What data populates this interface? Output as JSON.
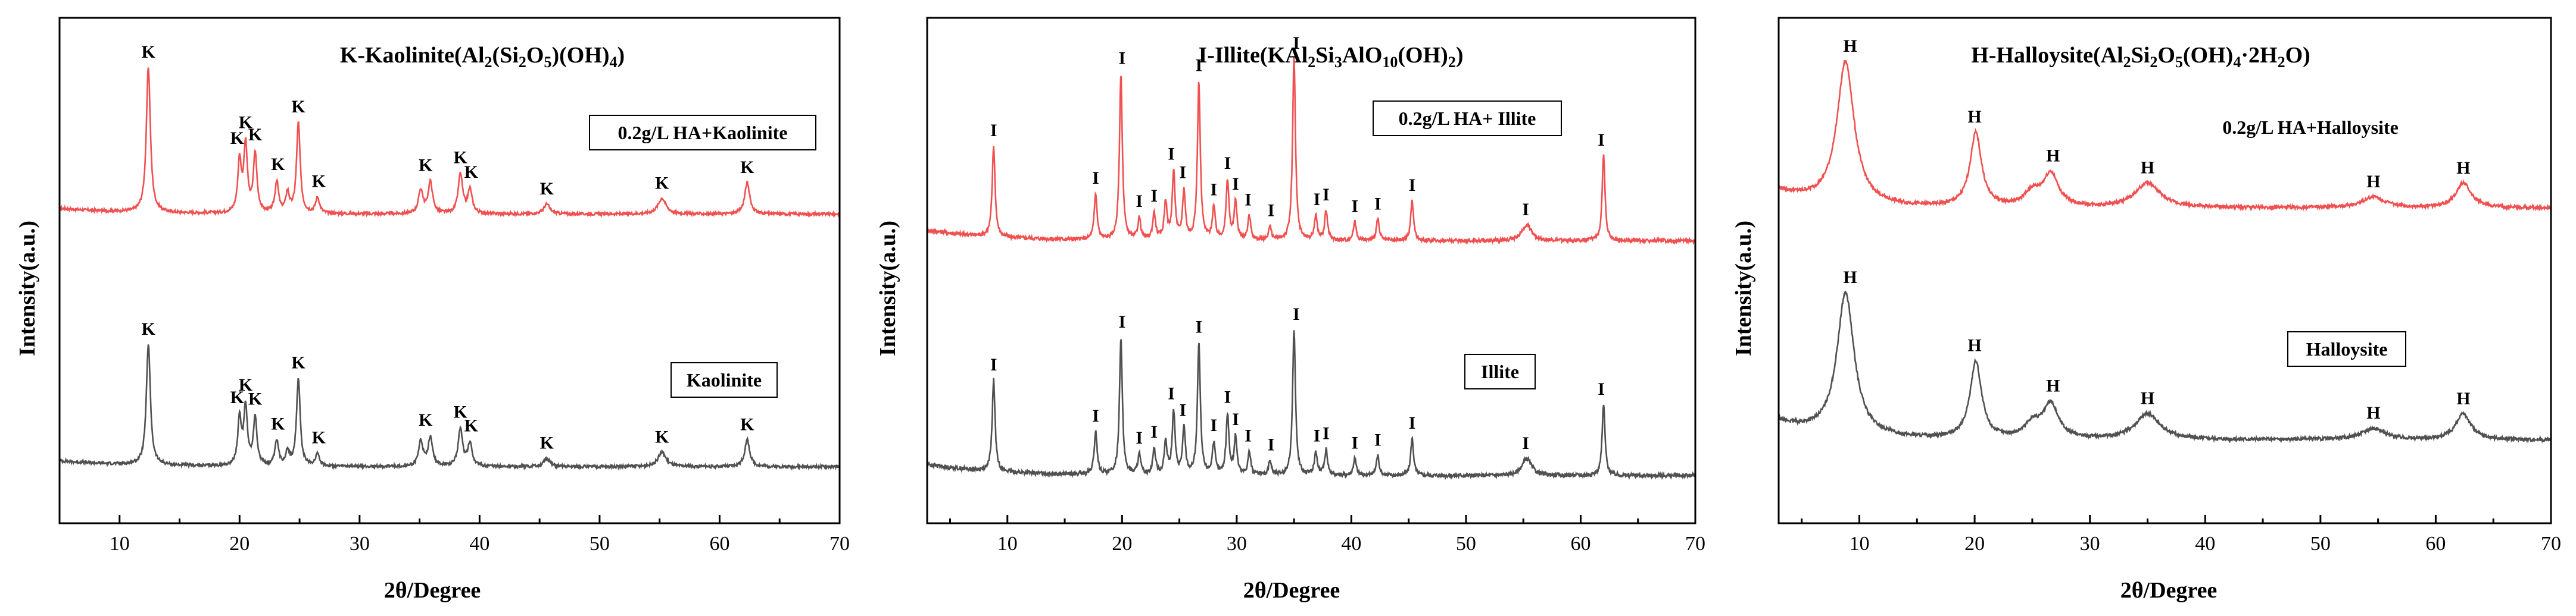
{
  "colors": {
    "top_series": "#f05050",
    "bottom_series": "#505050"
  },
  "chart_data": [
    {
      "type": "line",
      "title": "K-Kaolinite(Al2(Si2O5)(OH)4)",
      "title_parts": [
        "K-Kaolinite(Al",
        "2",
        "(Si",
        "2",
        "O",
        "5",
        ")(OH)",
        "4",
        ")"
      ],
      "xlabel": "2θ/Degree",
      "ylabel": "Intensity(a.u.)",
      "xlim": [
        5,
        70
      ],
      "xticks": [
        10,
        20,
        30,
        40,
        50,
        60,
        70
      ],
      "series": [
        {
          "name": "0.2g/L HA+Kaolinite",
          "color": "#f05050",
          "baseline": 0.3,
          "peaks": [
            [
              12.4,
              0.74,
              0.2
            ],
            [
              20.0,
              0.26,
              0.18
            ],
            [
              20.5,
              0.34,
              0.18
            ],
            [
              21.3,
              0.3,
              0.18
            ],
            [
              23.1,
              0.16,
              0.18
            ],
            [
              24.0,
              0.1,
              0.18
            ],
            [
              24.9,
              0.46,
              0.18
            ],
            [
              26.5,
              0.08,
              0.2
            ],
            [
              35.1,
              0.12,
              0.22
            ],
            [
              35.9,
              0.16,
              0.22
            ],
            [
              38.4,
              0.2,
              0.22
            ],
            [
              39.2,
              0.12,
              0.22
            ],
            [
              45.6,
              0.05,
              0.3
            ],
            [
              55.2,
              0.08,
              0.4
            ],
            [
              62.3,
              0.16,
              0.25
            ]
          ],
          "peak_labels": [
            [
              12.4,
              "K"
            ],
            [
              19.8,
              "K"
            ],
            [
              20.5,
              "K"
            ],
            [
              21.3,
              "K"
            ],
            [
              23.2,
              "K"
            ],
            [
              24.9,
              "K"
            ],
            [
              26.6,
              "K"
            ],
            [
              35.5,
              "K"
            ],
            [
              38.4,
              "K"
            ],
            [
              39.3,
              "K"
            ],
            [
              45.6,
              "K"
            ],
            [
              55.2,
              "K"
            ],
            [
              62.3,
              "K"
            ]
          ]
        },
        {
          "name": "Kaolinite",
          "color": "#505050",
          "baseline": 0.0,
          "peaks": [
            [
              12.4,
              0.58,
              0.2
            ],
            [
              20.0,
              0.22,
              0.18
            ],
            [
              20.5,
              0.28,
              0.18
            ],
            [
              21.3,
              0.23,
              0.18
            ],
            [
              23.1,
              0.12,
              0.18
            ],
            [
              24.0,
              0.07,
              0.18
            ],
            [
              24.9,
              0.42,
              0.18
            ],
            [
              26.5,
              0.06,
              0.2
            ],
            [
              35.1,
              0.12,
              0.22
            ],
            [
              35.9,
              0.14,
              0.22
            ],
            [
              38.4,
              0.18,
              0.22
            ],
            [
              39.2,
              0.11,
              0.22
            ],
            [
              45.6,
              0.04,
              0.3
            ],
            [
              55.2,
              0.07,
              0.4
            ],
            [
              62.3,
              0.13,
              0.25
            ]
          ],
          "peak_labels": [
            [
              12.4,
              "K"
            ],
            [
              19.8,
              "K"
            ],
            [
              20.5,
              "K"
            ],
            [
              21.3,
              "K"
            ],
            [
              23.2,
              "K"
            ],
            [
              24.9,
              "K"
            ],
            [
              26.6,
              "K"
            ],
            [
              35.5,
              "K"
            ],
            [
              38.4,
              "K"
            ],
            [
              39.3,
              "K"
            ],
            [
              45.6,
              "K"
            ],
            [
              55.2,
              "K"
            ],
            [
              62.3,
              "K"
            ]
          ]
        }
      ]
    },
    {
      "type": "line",
      "title": "I-Illite(KAl2Si3AlO10(OH)2)",
      "title_parts": [
        "I-Illite(KAl",
        "2",
        "Si",
        "3",
        "AlO",
        "10",
        "(OH)",
        "2",
        ")"
      ],
      "xlabel": "2θ/Degree",
      "ylabel": "Intensity(a.u.)",
      "xlim": [
        3,
        70
      ],
      "xticks": [
        10,
        20,
        30,
        40,
        50,
        60,
        70
      ],
      "series": [
        {
          "name": "0.2g/L HA+ Illite",
          "color": "#f05050",
          "baseline": 0.28,
          "peaks": [
            [
              8.8,
              0.34,
              0.15
            ],
            [
              17.7,
              0.17,
              0.15
            ],
            [
              19.9,
              0.62,
              0.15
            ],
            [
              21.5,
              0.08,
              0.15
            ],
            [
              22.8,
              0.1,
              0.15
            ],
            [
              23.8,
              0.14,
              0.15
            ],
            [
              24.5,
              0.25,
              0.15
            ],
            [
              25.4,
              0.18,
              0.15
            ],
            [
              26.7,
              0.59,
              0.15
            ],
            [
              28.0,
              0.12,
              0.15
            ],
            [
              29.2,
              0.22,
              0.15
            ],
            [
              29.9,
              0.14,
              0.15
            ],
            [
              31.1,
              0.09,
              0.15
            ],
            [
              32.9,
              0.05,
              0.15
            ],
            [
              35.0,
              0.68,
              0.15
            ],
            [
              36.9,
              0.09,
              0.15
            ],
            [
              37.8,
              0.11,
              0.15
            ],
            [
              40.3,
              0.07,
              0.15
            ],
            [
              42.3,
              0.08,
              0.15
            ],
            [
              45.3,
              0.15,
              0.15
            ],
            [
              55.3,
              0.06,
              0.5
            ],
            [
              62.0,
              0.32,
              0.15
            ]
          ],
          "peak_labels": [
            [
              8.8,
              "I"
            ],
            [
              17.7,
              "I"
            ],
            [
              20.0,
              "I"
            ],
            [
              21.5,
              "I"
            ],
            [
              22.8,
              "I"
            ],
            [
              24.3,
              "I"
            ],
            [
              25.3,
              "I"
            ],
            [
              26.7,
              "I"
            ],
            [
              28.0,
              "I"
            ],
            [
              29.2,
              "I"
            ],
            [
              29.9,
              "I"
            ],
            [
              31.0,
              "I"
            ],
            [
              33.0,
              "I"
            ],
            [
              35.2,
              "I"
            ],
            [
              37.0,
              "I"
            ],
            [
              37.8,
              "I"
            ],
            [
              40.3,
              "I"
            ],
            [
              42.3,
              "I"
            ],
            [
              45.3,
              "I"
            ],
            [
              55.2,
              "I"
            ],
            [
              61.8,
              "I"
            ]
          ]
        },
        {
          "name": "Illite",
          "color": "#505050",
          "baseline": 0.0,
          "peaks": [
            [
              8.8,
              0.32,
              0.15
            ],
            [
              17.7,
              0.15,
              0.15
            ],
            [
              19.9,
              0.48,
              0.15
            ],
            [
              21.5,
              0.07,
              0.15
            ],
            [
              22.8,
              0.09,
              0.15
            ],
            [
              23.8,
              0.11,
              0.15
            ],
            [
              24.5,
              0.22,
              0.15
            ],
            [
              25.4,
              0.16,
              0.15
            ],
            [
              26.7,
              0.46,
              0.15
            ],
            [
              28.0,
              0.11,
              0.15
            ],
            [
              29.2,
              0.21,
              0.15
            ],
            [
              29.9,
              0.13,
              0.15
            ],
            [
              31.1,
              0.08,
              0.15
            ],
            [
              32.9,
              0.05,
              0.15
            ],
            [
              35.0,
              0.51,
              0.15
            ],
            [
              36.9,
              0.08,
              0.15
            ],
            [
              37.8,
              0.09,
              0.15
            ],
            [
              40.3,
              0.06,
              0.15
            ],
            [
              42.3,
              0.07,
              0.15
            ],
            [
              45.3,
              0.13,
              0.15
            ],
            [
              55.3,
              0.06,
              0.5
            ],
            [
              62.0,
              0.25,
              0.15
            ]
          ],
          "peak_labels": [
            [
              8.8,
              "I"
            ],
            [
              17.7,
              "I"
            ],
            [
              20.0,
              "I"
            ],
            [
              21.5,
              "I"
            ],
            [
              22.8,
              "I"
            ],
            [
              24.3,
              "I"
            ],
            [
              25.3,
              "I"
            ],
            [
              26.7,
              "I"
            ],
            [
              28.0,
              "I"
            ],
            [
              29.2,
              "I"
            ],
            [
              29.9,
              "I"
            ],
            [
              31.0,
              "I"
            ],
            [
              33.0,
              "I"
            ],
            [
              35.2,
              "I"
            ],
            [
              37.0,
              "I"
            ],
            [
              37.8,
              "I"
            ],
            [
              40.3,
              "I"
            ],
            [
              42.3,
              "I"
            ],
            [
              45.3,
              "I"
            ],
            [
              55.2,
              "I"
            ],
            [
              61.8,
              "I"
            ]
          ]
        }
      ]
    },
    {
      "type": "line",
      "title": "H-Halloysite(Al2Si2O5(OH)4·2H2O)",
      "title_parts": [
        "H-Halloysite(Al",
        "2",
        "Si",
        "2",
        "O",
        "5",
        "(OH)",
        "4",
        "·2H",
        "2",
        "O)"
      ],
      "xlabel": "2θ/Degree",
      "ylabel": "Intensity(a.u.)",
      "xlim": [
        3,
        70
      ],
      "xticks": [
        10,
        20,
        30,
        40,
        50,
        60,
        70
      ],
      "series": [
        {
          "name": "0.2g/L HA+Halloysite",
          "color": "#f05050",
          "baseline": 0.32,
          "broad": true,
          "peaks": [
            [
              8.8,
              0.52,
              0.9
            ],
            [
              20.1,
              0.27,
              0.6
            ],
            [
              25.0,
              0.05,
              0.8
            ],
            [
              26.6,
              0.12,
              0.8
            ],
            [
              35.0,
              0.09,
              1.3
            ],
            [
              54.6,
              0.04,
              1.2
            ],
            [
              62.4,
              0.09,
              0.8
            ]
          ],
          "peak_labels": [
            [
              9.2,
              "H"
            ],
            [
              20.0,
              "H"
            ],
            [
              26.8,
              "H"
            ],
            [
              35.0,
              "H"
            ],
            [
              54.6,
              "H"
            ],
            [
              62.4,
              "H"
            ]
          ]
        },
        {
          "name": "Halloysite",
          "color": "#505050",
          "baseline": 0.0,
          "broad": true,
          "peaks": [
            [
              8.8,
              0.5,
              0.9
            ],
            [
              20.1,
              0.27,
              0.6
            ],
            [
              25.0,
              0.05,
              0.8
            ],
            [
              26.6,
              0.12,
              0.8
            ],
            [
              35.0,
              0.09,
              1.3
            ],
            [
              54.6,
              0.04,
              1.2
            ],
            [
              62.4,
              0.09,
              0.8
            ]
          ],
          "peak_labels": [
            [
              9.2,
              "H"
            ],
            [
              20.0,
              "H"
            ],
            [
              26.8,
              "H"
            ],
            [
              35.0,
              "H"
            ],
            [
              54.6,
              "H"
            ],
            [
              62.4,
              "H"
            ]
          ]
        }
      ]
    }
  ]
}
